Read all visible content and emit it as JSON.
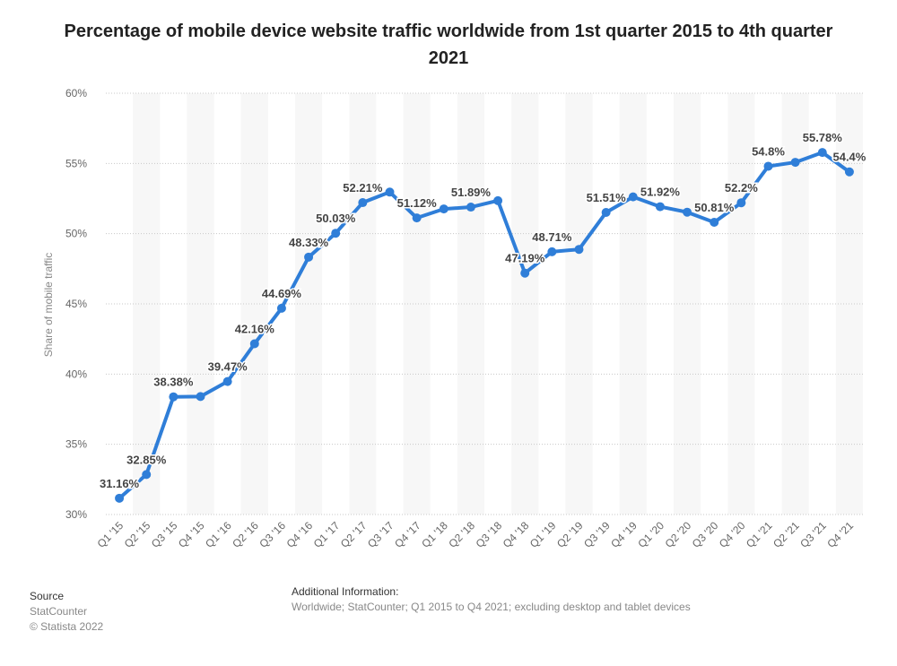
{
  "title": "Percentage of mobile device website traffic worldwide from 1st quarter 2015 to 4th quarter 2021",
  "source": {
    "heading": "Source",
    "name": "StatCounter",
    "copyright": "© Statista 2022"
  },
  "additional_info": {
    "heading": "Additional Information:",
    "text": "Worldwide; StatCounter; Q1 2015 to Q4 2021; excluding desktop and tablet devices"
  },
  "colors": {
    "line": "#2f7ed8",
    "band": "#f7f7f7",
    "grid": "#c8c8c8"
  },
  "chart_data": {
    "type": "line",
    "title": "Percentage of mobile device website traffic worldwide from 1st quarter 2015 to 4th quarter 2021",
    "xlabel": "",
    "ylabel": "Share of mobile traffic",
    "ylim": [
      30,
      60
    ],
    "yticks": [
      30,
      35,
      40,
      45,
      50,
      55,
      60
    ],
    "ytick_labels": [
      "30%",
      "35%",
      "40%",
      "45%",
      "50%",
      "55%",
      "60%"
    ],
    "grid": true,
    "categories": [
      "Q1 '15",
      "Q2 '15",
      "Q3 '15",
      "Q4 '15",
      "Q1 '16",
      "Q2 '16",
      "Q3 '16",
      "Q4 '16",
      "Q1 '17",
      "Q2 '17",
      "Q3 '17",
      "Q4 '17",
      "Q1 '18",
      "Q2 '18",
      "Q3 '18",
      "Q4 '18",
      "Q1 '19",
      "Q2 '19",
      "Q3 '19",
      "Q4 '19",
      "Q1 '20",
      "Q2 '20",
      "Q3 '20",
      "Q4 '20",
      "Q1 '21",
      "Q2 '21",
      "Q3 '21",
      "Q4 '21"
    ],
    "values": [
      31.16,
      32.85,
      38.38,
      38.4,
      39.47,
      42.16,
      44.69,
      48.33,
      50.03,
      52.21,
      52.96,
      51.12,
      51.76,
      51.89,
      52.35,
      47.19,
      48.71,
      48.88,
      51.51,
      52.62,
      51.92,
      51.53,
      50.81,
      52.2,
      54.8,
      55.08,
      55.78,
      54.4
    ],
    "data_labels": [
      "31.16%",
      "32.85%",
      "38.38%",
      "",
      "39.47%",
      "42.16%",
      "44.69%",
      "48.33%",
      "50.03%",
      "52.21%",
      "",
      "51.12%",
      "",
      "51.89%",
      "",
      "47.19%",
      "48.71%",
      "",
      "51.51%",
      "",
      "51.92%",
      "",
      "50.81%",
      "52.2%",
      "54.8%",
      "",
      "55.78%",
      "54.4%"
    ]
  }
}
